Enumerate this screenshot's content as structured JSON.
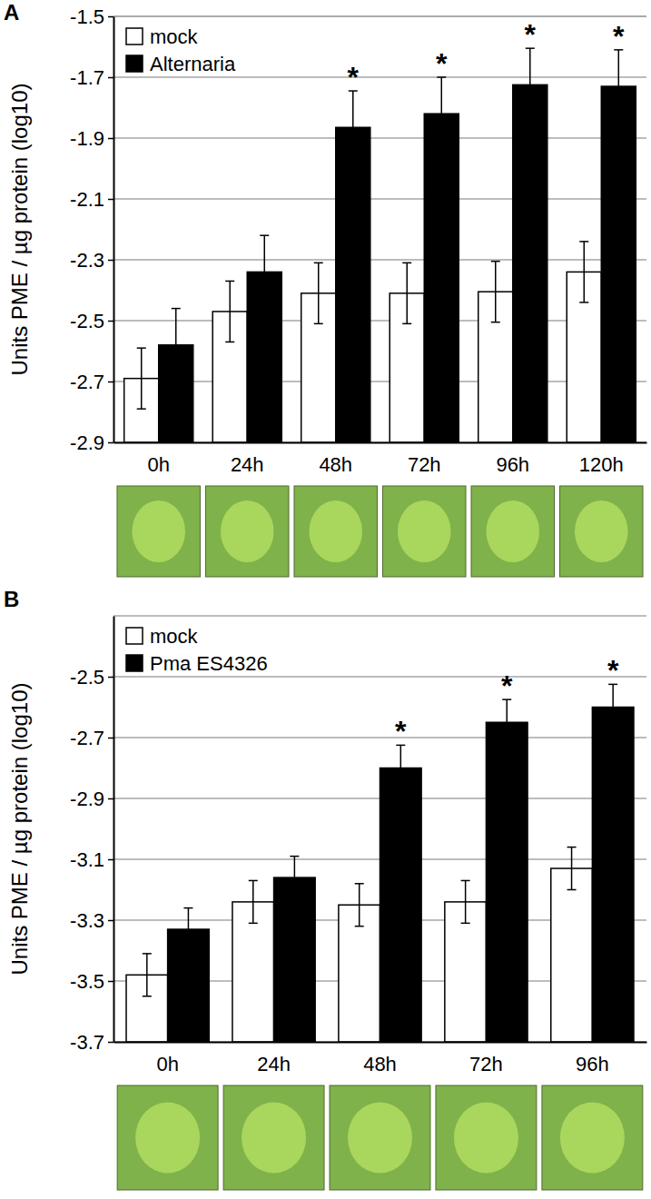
{
  "chart_data": [
    {
      "type": "bar",
      "title": "A",
      "y_label": "Units PME / µg protein (log10)",
      "categories": [
        "0h",
        "24h",
        "48h",
        "72h",
        "96h",
        "120h"
      ],
      "series": [
        {
          "name": "mock",
          "color": "#ffffff",
          "values": [
            -2.69,
            -2.47,
            -2.41,
            -2.41,
            -2.405,
            -2.34
          ],
          "errors": [
            0.1,
            0.1,
            0.1,
            0.1,
            0.1,
            0.1
          ]
        },
        {
          "name": "Alternaria",
          "color": "#000000",
          "values": [
            -2.58,
            -2.34,
            -1.865,
            -1.82,
            -1.725,
            -1.73
          ],
          "errors": [
            0.12,
            0.12,
            0.12,
            0.12,
            0.12,
            0.12
          ]
        }
      ],
      "annotations": [
        {
          "text": "*",
          "x": "48h",
          "series": "Alternaria"
        },
        {
          "text": "*",
          "x": "72h",
          "series": "Alternaria"
        },
        {
          "text": "*",
          "x": "96h",
          "series": "Alternaria"
        },
        {
          "text": "*",
          "x": "120h",
          "series": "Alternaria"
        }
      ],
      "ylim": [
        -2.9,
        -1.5
      ],
      "yticks": [
        -2.9,
        -2.7,
        -2.5,
        -2.3,
        -2.1,
        -1.9,
        -1.7,
        -1.5
      ],
      "grid": true,
      "legend": "top-left"
    },
    {
      "type": "bar",
      "title": "B",
      "y_label": "Units  PME / µg protein (log10)",
      "categories": [
        "0h",
        "24h",
        "48h",
        "72h",
        "96h"
      ],
      "series": [
        {
          "name": "mock",
          "color": "#ffffff",
          "values": [
            -3.48,
            -3.24,
            -3.25,
            -3.24,
            -3.13
          ],
          "errors": [
            0.07,
            0.07,
            0.07,
            0.07,
            0.07
          ]
        },
        {
          "name": "Pma ES4326",
          "color": "#000000",
          "values": [
            -3.33,
            -3.16,
            -2.8,
            -2.65,
            -2.6
          ],
          "errors": [
            0.07,
            0.07,
            0.075,
            0.075,
            0.075
          ]
        }
      ],
      "annotations": [
        {
          "text": "*",
          "x": "48h",
          "series": "Pma ES4326"
        },
        {
          "text": "*",
          "x": "72h",
          "series": "Pma ES4326"
        },
        {
          "text": "*",
          "x": "96h",
          "series": "Pma ES4326"
        }
      ],
      "ylim": [
        -3.7,
        -2.3
      ],
      "yticks": [
        -3.7,
        -3.5,
        -3.3,
        -3.1,
        -2.9,
        -2.7,
        -2.5
      ],
      "grid": true,
      "legend": "top-left"
    }
  ]
}
